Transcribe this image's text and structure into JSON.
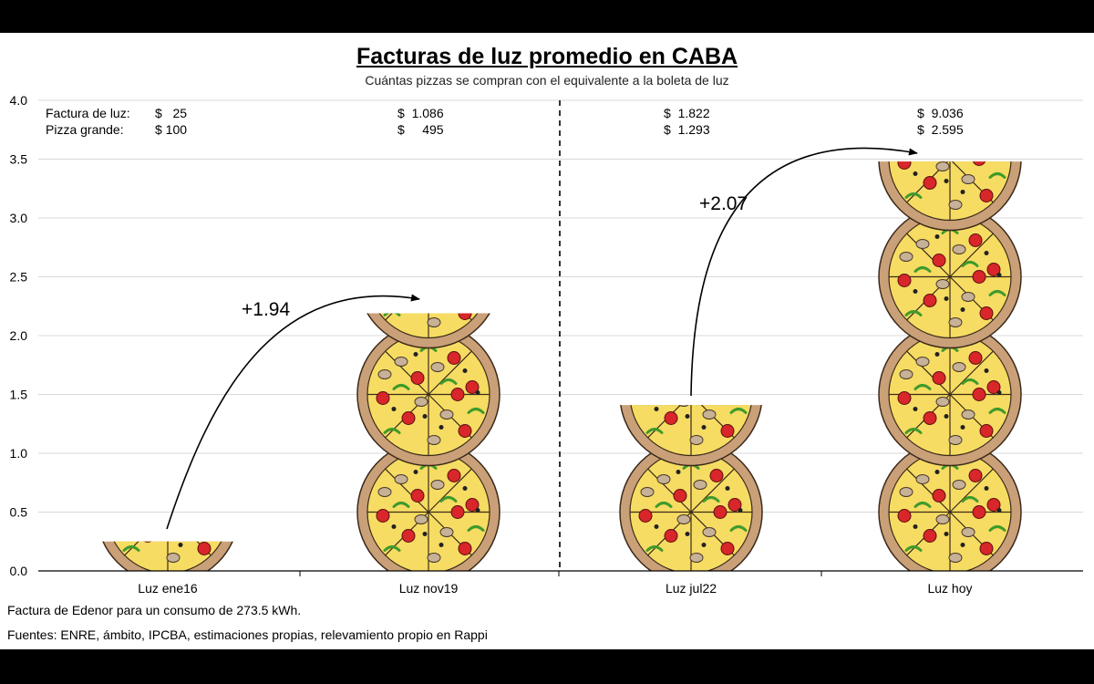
{
  "title": "Facturas de luz promedio en CABA",
  "subtitle": "Cuántas pizzas se compran con el equivalente a la boleta de luz",
  "row_labels": {
    "factura": "Factura de luz:",
    "pizza": "Pizza grande:"
  },
  "prices": [
    {
      "factura": "$   25",
      "pizza": "$ 100"
    },
    {
      "factura": "$  1.086",
      "pizza": "$     495"
    },
    {
      "factura": "$  1.822",
      "pizza": "$  1.293"
    },
    {
      "factura": "$  9.036",
      "pizza": "$  2.595"
    }
  ],
  "footnotes": [
    "Factura de Edenor para un consumo de 273.5 kWh.",
    "Fuentes: ENRE, ámbito, IPCBA, estimaciones propias, relevamiento propio en Rappi"
  ],
  "chart_data": {
    "type": "bar",
    "categories": [
      "Luz ene16",
      "Luz nov19",
      "Luz jul22",
      "Luz hoy"
    ],
    "values": [
      0.25,
      2.19,
      1.41,
      3.48
    ],
    "ylim": [
      0,
      4
    ],
    "yticks": [
      "0.0",
      "0.5",
      "1.0",
      "1.5",
      "2.0",
      "2.5",
      "3.0",
      "3.5",
      "4.0"
    ],
    "grid": true,
    "bar_style": "stacked pizza pictograms",
    "annotations": [
      {
        "label": "+1.94",
        "from": "Luz ene16",
        "to": "Luz nov19"
      },
      {
        "label": "+2.07",
        "from": "Luz jul22",
        "to": "Luz hoy"
      }
    ],
    "divider_between": [
      "Luz nov19",
      "Luz jul22"
    ]
  }
}
